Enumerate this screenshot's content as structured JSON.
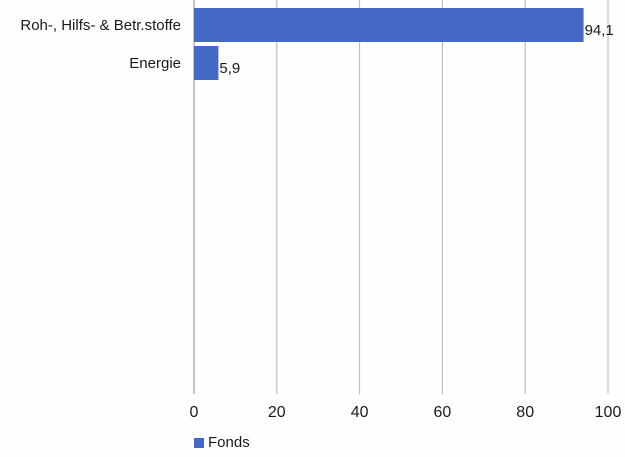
{
  "chart_data": {
    "type": "bar",
    "orientation": "horizontal",
    "categories": [
      "Roh-, Hilfs- & Betr.stoffe",
      "Energie"
    ],
    "series": [
      {
        "name": "Fonds",
        "values": [
          94.1,
          5.9
        ],
        "labels": [
          "94,1",
          "5,9"
        ],
        "color": "#4668c5"
      }
    ],
    "xlim": [
      0,
      100
    ],
    "xticks": [
      0,
      20,
      40,
      60,
      80,
      100
    ],
    "xtick_labels": [
      "0",
      "20",
      "40",
      "60",
      "80",
      "100"
    ],
    "grid": "vertical",
    "legend": "bottom-left",
    "title": "",
    "xlabel": "",
    "ylabel": ""
  },
  "colors": {
    "bar": "#4668c5",
    "grid": "#b4b4b4",
    "axis": "#8c8c8c"
  }
}
